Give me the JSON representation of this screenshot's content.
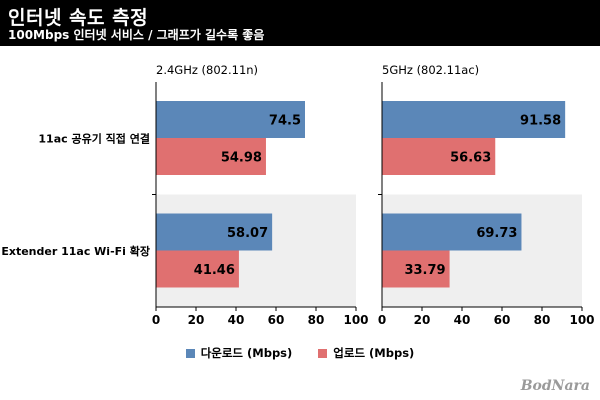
{
  "header": {
    "title": "인터넷 속도 측정",
    "subtitle": "100Mbps 인터넷 서비스 / 그래프가 길수록 좋음"
  },
  "colors": {
    "download": "#5b87b8",
    "upload": "#e07070",
    "alt_row_bg": "#efefef"
  },
  "chart_data": {
    "type": "bar",
    "orientation": "horizontal",
    "categories": [
      "11ac 공유기 직접 연결",
      "Extender 11ac Wi-Fi 확장"
    ],
    "xlim": [
      0,
      100
    ],
    "xticks": [
      0,
      20,
      40,
      60,
      80,
      100
    ],
    "legend_position": "bottom",
    "panels": [
      {
        "title": "2.4GHz (802.11n)",
        "series": [
          {
            "name": "다운로드 (Mbps)",
            "values": [
              74.5,
              58.07
            ]
          },
          {
            "name": "업로드 (Mbps)",
            "values": [
              54.98,
              41.46
            ]
          }
        ]
      },
      {
        "title": "5GHz (802.11ac)",
        "series": [
          {
            "name": "다운로드 (Mbps)",
            "values": [
              91.58,
              69.73
            ]
          },
          {
            "name": "업로드 (Mbps)",
            "values": [
              56.63,
              33.79
            ]
          }
        ]
      }
    ]
  },
  "legend": {
    "download": "다운로드 (Mbps)",
    "upload": "업로드 (Mbps)"
  },
  "brand": "BodNara"
}
